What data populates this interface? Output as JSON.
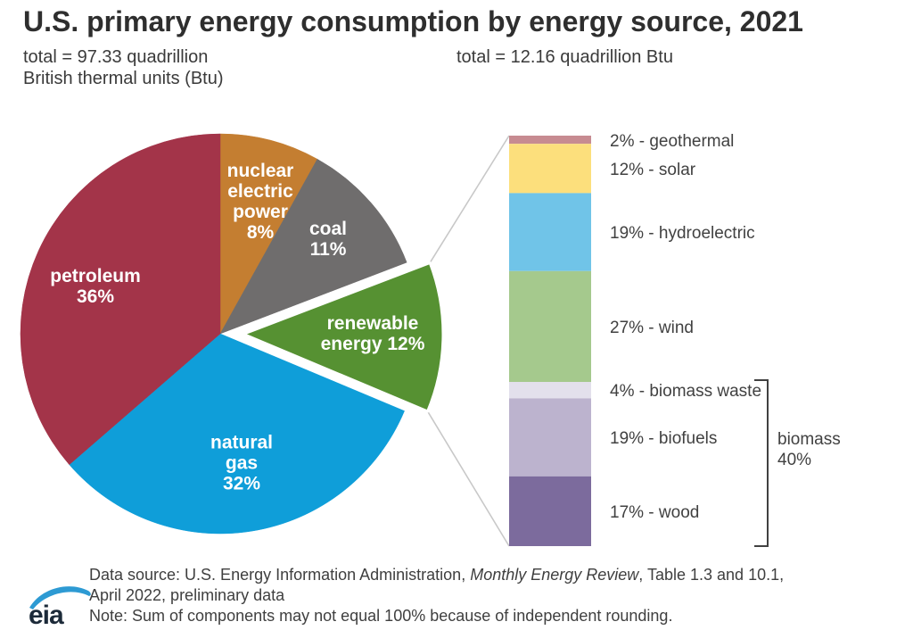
{
  "header": {
    "title": "U.S. primary energy consumption by energy source, 2021",
    "pie_total_line1": "total = 97.33 quadrillion",
    "pie_total_line2": "British thermal units (Btu)",
    "bar_total": "total = 12.16 quadrillion Btu"
  },
  "chart_data": {
    "type": "pie",
    "title": "U.S. primary energy consumption by energy source, 2021",
    "pie": {
      "total_value_quadrillion_btu": 97.33,
      "total_label": "total = 97.33 quadrillion British thermal units (Btu)",
      "units": "percent of total",
      "start_angle_deg": 0,
      "direction": "clockwise",
      "slices": [
        {
          "id": "nuclear",
          "name": "nuclear electric power",
          "pct": 8,
          "color": "#C47E31",
          "label_lines": [
            "nuclear",
            "electric",
            "power",
            "8%"
          ],
          "exploded": false
        },
        {
          "id": "coal",
          "name": "coal",
          "pct": 11,
          "color": "#6F6D6D",
          "label_lines": [
            "coal",
            "11%"
          ],
          "exploded": false
        },
        {
          "id": "renewable",
          "name": "renewable energy",
          "pct": 12,
          "color": "#569132",
          "label_lines": [
            "renewable",
            "energy 12%"
          ],
          "exploded": true
        },
        {
          "id": "natural-gas",
          "name": "natural gas",
          "pct": 32,
          "color": "#0F9ED9",
          "label_lines": [
            "natural",
            "gas",
            "32%"
          ],
          "exploded": false
        },
        {
          "id": "petroleum",
          "name": "petroleum",
          "pct": 36,
          "color": "#A33449",
          "label_lines": [
            "petroleum",
            "36%"
          ],
          "exploded": false
        }
      ]
    },
    "bar": {
      "total_value_quadrillion_btu": 12.16,
      "total_label": "total = 12.16 quadrillion Btu",
      "linked_pie_slice": "renewable",
      "segments_top_to_bottom": [
        {
          "id": "geothermal",
          "name": "geothermal",
          "pct": 2,
          "color": "#C78B91"
        },
        {
          "id": "solar",
          "name": "solar",
          "pct": 12,
          "color": "#FCDF7C"
        },
        {
          "id": "hydroelectric",
          "name": "hydroelectric",
          "pct": 19,
          "color": "#70C4E8"
        },
        {
          "id": "wind",
          "name": "wind",
          "pct": 27,
          "color": "#A5C98D"
        },
        {
          "id": "biomass-waste",
          "name": "biomass waste",
          "pct": 4,
          "color": "#E3E0EC"
        },
        {
          "id": "biofuels",
          "name": "biofuels",
          "pct": 19,
          "color": "#BCB3CE"
        },
        {
          "id": "wood",
          "name": "wood",
          "pct": 17,
          "color": "#7C6B9D"
        }
      ],
      "bracket": {
        "label_lines": [
          "biomass",
          "40%"
        ],
        "covers": [
          "biomass-waste",
          "biofuels",
          "wood"
        ],
        "total_pct": 40
      }
    }
  },
  "footer": {
    "source_prefix": "Data source: U.S. Energy Information Administration, ",
    "source_italic": "Monthly Energy Review",
    "source_suffix": ", Table 1.3 and 10.1,",
    "source_line2": "April 2022, preliminary data",
    "note": "Note: Sum of components may not equal 100% because of independent rounding.",
    "logo_text": "eia"
  },
  "colors": {
    "connector_line": "#C8C8C8",
    "bracket": "#414141",
    "title_text": "#2E2E2E",
    "label_text": "#414141",
    "logo_blue": "#2D9AD3",
    "logo_text": "#1C2A39"
  }
}
